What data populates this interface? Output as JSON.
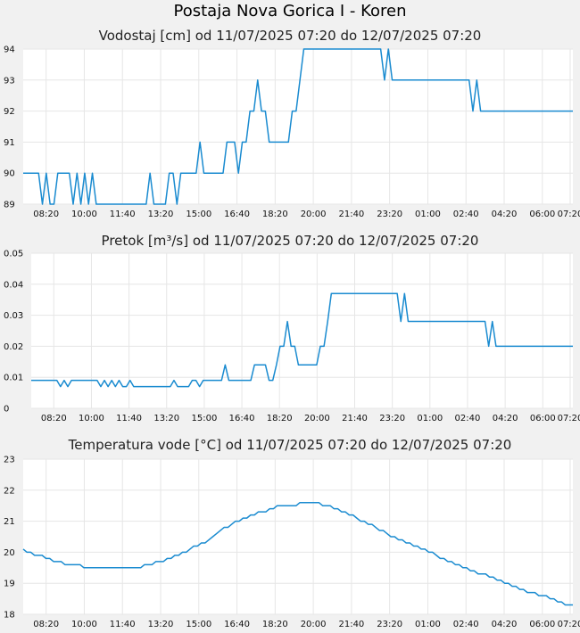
{
  "page": {
    "title": "Postaja Nova Gorica I - Koren"
  },
  "colors": {
    "line": "#1a8bd0",
    "grid": "#e6e6e6",
    "plot_bg": "#ffffff",
    "page_bg": "#f1f1f1"
  },
  "chart_data": [
    {
      "id": "vodostaj",
      "type": "line",
      "title": "Vodostaj [cm] od 11/07/2025 07:20 do 12/07/2025 07:20",
      "xlabel": "",
      "ylabel": "",
      "x_ticks": [
        "08:20",
        "10:00",
        "11:40",
        "13:20",
        "15:00",
        "16:40",
        "18:20",
        "20:00",
        "21:40",
        "23:20",
        "01:00",
        "02:40",
        "04:20",
        "06:00",
        "07:20"
      ],
      "ylim": [
        89,
        94
      ],
      "y_ticks": [
        "89",
        "90",
        "91",
        "92",
        "93",
        "94"
      ],
      "grid": true,
      "step": true,
      "series": [
        {
          "values": [
            90,
            90,
            90,
            90,
            90,
            89,
            90,
            89,
            89,
            90,
            90,
            90,
            90,
            89,
            90,
            89,
            90,
            89,
            90,
            89,
            89,
            89,
            89,
            89,
            89,
            89,
            89,
            89,
            89,
            89,
            89,
            89,
            89,
            90,
            89,
            89,
            89,
            89,
            90,
            90,
            89,
            90,
            90,
            90,
            90,
            90,
            91,
            90,
            90,
            90,
            90,
            90,
            90,
            91,
            91,
            91,
            90,
            91,
            91,
            92,
            92,
            93,
            92,
            92,
            91,
            91,
            91,
            91,
            91,
            91,
            92,
            92,
            93,
            94,
            94,
            94,
            94,
            94,
            94,
            94,
            94,
            94,
            94,
            94,
            94,
            94,
            94,
            94,
            94,
            94,
            94,
            94,
            94,
            94,
            93,
            94,
            93,
            93,
            93,
            93,
            93,
            93,
            93,
            93,
            93,
            93,
            93,
            93,
            93,
            93,
            93,
            93,
            93,
            93,
            93,
            93,
            93,
            92,
            93,
            92,
            92,
            92,
            92,
            92,
            92,
            92,
            92,
            92,
            92,
            92,
            92,
            92,
            92,
            92,
            92,
            92,
            92,
            92,
            92,
            92,
            92,
            92,
            92,
            92
          ]
        }
      ]
    },
    {
      "id": "pretok",
      "type": "line",
      "title": "Pretok [m³/s] od 11/07/2025 07:20 do 12/07/2025 07:20",
      "xlabel": "",
      "ylabel": "",
      "x_ticks": [
        "08:20",
        "10:00",
        "11:40",
        "13:20",
        "15:00",
        "16:40",
        "18:20",
        "20:00",
        "21:40",
        "23:20",
        "01:00",
        "02:40",
        "04:20",
        "06:00",
        "07:20"
      ],
      "ylim": [
        0,
        0.05
      ],
      "y_ticks": [
        "0",
        "0.01",
        "0.02",
        "0.03",
        "0.04",
        "0.05"
      ],
      "grid": true,
      "step": true,
      "series": [
        {
          "values": [
            0.009,
            0.009,
            0.009,
            0.009,
            0.009,
            0.009,
            0.009,
            0.009,
            0.007,
            0.009,
            0.007,
            0.009,
            0.009,
            0.009,
            0.009,
            0.009,
            0.009,
            0.009,
            0.009,
            0.007,
            0.009,
            0.007,
            0.009,
            0.007,
            0.009,
            0.007,
            0.007,
            0.009,
            0.007,
            0.007,
            0.007,
            0.007,
            0.007,
            0.007,
            0.007,
            0.007,
            0.007,
            0.007,
            0.007,
            0.009,
            0.007,
            0.007,
            0.007,
            0.007,
            0.009,
            0.009,
            0.007,
            0.009,
            0.009,
            0.009,
            0.009,
            0.009,
            0.009,
            0.014,
            0.009,
            0.009,
            0.009,
            0.009,
            0.009,
            0.009,
            0.009,
            0.014,
            0.014,
            0.014,
            0.014,
            0.009,
            0.009,
            0.014,
            0.02,
            0.02,
            0.028,
            0.02,
            0.02,
            0.014,
            0.014,
            0.014,
            0.014,
            0.014,
            0.014,
            0.02,
            0.02,
            0.028,
            0.037,
            0.037,
            0.037,
            0.037,
            0.037,
            0.037,
            0.037,
            0.037,
            0.037,
            0.037,
            0.037,
            0.037,
            0.037,
            0.037,
            0.037,
            0.037,
            0.037,
            0.037,
            0.037,
            0.028,
            0.037,
            0.028,
            0.028,
            0.028,
            0.028,
            0.028,
            0.028,
            0.028,
            0.028,
            0.028,
            0.028,
            0.028,
            0.028,
            0.028,
            0.028,
            0.028,
            0.028,
            0.028,
            0.028,
            0.028,
            0.028,
            0.028,
            0.028,
            0.02,
            0.028,
            0.02,
            0.02,
            0.02,
            0.02,
            0.02,
            0.02,
            0.02,
            0.02,
            0.02,
            0.02,
            0.02,
            0.02,
            0.02,
            0.02,
            0.02,
            0.02,
            0.02,
            0.02,
            0.02,
            0.02,
            0.02,
            0.02
          ]
        }
      ]
    },
    {
      "id": "temperatura",
      "type": "line",
      "title": "Temperatura vode [°C] od 11/07/2025 07:20 do 12/07/2025 07:20",
      "xlabel": "",
      "ylabel": "",
      "x_ticks": [
        "08:20",
        "10:00",
        "11:40",
        "13:20",
        "15:00",
        "16:40",
        "18:20",
        "20:00",
        "21:40",
        "23:20",
        "01:00",
        "02:40",
        "04:20",
        "06:00",
        "07:20"
      ],
      "ylim": [
        18,
        23
      ],
      "y_ticks": [
        "18",
        "19",
        "20",
        "21",
        "22",
        "23"
      ],
      "grid": true,
      "step": true,
      "series": [
        {
          "values": [
            20.1,
            20.0,
            20.0,
            19.9,
            19.9,
            19.9,
            19.8,
            19.8,
            19.7,
            19.7,
            19.7,
            19.6,
            19.6,
            19.6,
            19.6,
            19.6,
            19.5,
            19.5,
            19.5,
            19.5,
            19.5,
            19.5,
            19.5,
            19.5,
            19.5,
            19.5,
            19.5,
            19.5,
            19.5,
            19.5,
            19.5,
            19.5,
            19.6,
            19.6,
            19.6,
            19.7,
            19.7,
            19.7,
            19.8,
            19.8,
            19.9,
            19.9,
            20.0,
            20.0,
            20.1,
            20.2,
            20.2,
            20.3,
            20.3,
            20.4,
            20.5,
            20.6,
            20.7,
            20.8,
            20.8,
            20.9,
            21.0,
            21.0,
            21.1,
            21.1,
            21.2,
            21.2,
            21.3,
            21.3,
            21.3,
            21.4,
            21.4,
            21.5,
            21.5,
            21.5,
            21.5,
            21.5,
            21.5,
            21.6,
            21.6,
            21.6,
            21.6,
            21.6,
            21.6,
            21.5,
            21.5,
            21.5,
            21.4,
            21.4,
            21.3,
            21.3,
            21.2,
            21.2,
            21.1,
            21.0,
            21.0,
            20.9,
            20.9,
            20.8,
            20.7,
            20.7,
            20.6,
            20.5,
            20.5,
            20.4,
            20.4,
            20.3,
            20.3,
            20.2,
            20.2,
            20.1,
            20.1,
            20.0,
            20.0,
            19.9,
            19.8,
            19.8,
            19.7,
            19.7,
            19.6,
            19.6,
            19.5,
            19.5,
            19.4,
            19.4,
            19.3,
            19.3,
            19.3,
            19.2,
            19.2,
            19.1,
            19.1,
            19.0,
            19.0,
            18.9,
            18.9,
            18.8,
            18.8,
            18.7,
            18.7,
            18.7,
            18.6,
            18.6,
            18.6,
            18.5,
            18.5,
            18.4,
            18.4,
            18.3,
            18.3,
            18.3
          ]
        }
      ]
    }
  ]
}
